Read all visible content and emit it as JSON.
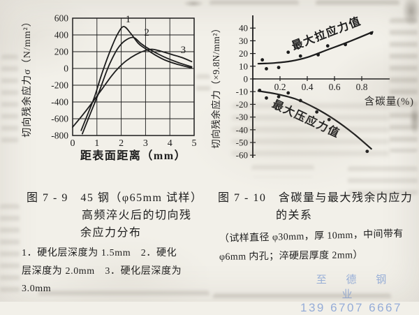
{
  "page": {
    "background": "#f2f0e9",
    "ink": "#1c1c1c"
  },
  "fig_left": {
    "caption_line1": "图 7 - 9　45 钢（φ65mm 试样）",
    "caption_line2": "高频淬火后的切向残",
    "caption_line3": "余应力分布",
    "note_line1": "1．硬化层深度为 1.5mm　2．硬化",
    "note_line2": "层深度为 2.0mm　3．硬化层深度为",
    "note_line3": "3.0mm"
  },
  "fig_right": {
    "caption_line1": "图 7 - 10　含碳量与最大残余内应力",
    "caption_line2": "的关系",
    "spec_line1": "（试样直径 φ30mm，厚 10mm，中间带有",
    "spec_line2": "φ6mm 内孔；淬硬层厚度 2mm）"
  },
  "watermark": {
    "company": "至 德 钢 业",
    "phone": "139 6707 6667",
    "color": "#7d9cd4"
  },
  "chart_data": [
    {
      "type": "line",
      "title": "45钢(φ65mm试样)高频淬火后的切向残余应力分布",
      "xlabel": "距表面距离（mm）",
      "ylabel": "切向残余应力σ（N/mm²）",
      "xlim": [
        0,
        5
      ],
      "ylim": [
        -800,
        600
      ],
      "xticks": [
        0,
        1,
        2,
        3,
        4,
        5
      ],
      "yticks": [
        600,
        400,
        200,
        0,
        -200,
        -400,
        -600,
        -800
      ],
      "grid": true,
      "series": [
        {
          "name": "1",
          "hardened_depth_mm": 1.5,
          "label_pos": [
            2.28,
            552
          ],
          "points": [
            [
              0.35,
              -740
            ],
            [
              0.6,
              -560
            ],
            [
              0.9,
              -340
            ],
            [
              1.15,
              -110
            ],
            [
              1.35,
              60
            ],
            [
              1.6,
              250
            ],
            [
              1.85,
              410
            ],
            [
              2.1,
              500
            ],
            [
              2.4,
              415
            ],
            [
              2.7,
              300
            ],
            [
              3.0,
              235
            ],
            [
              3.4,
              160
            ],
            [
              3.8,
              100
            ],
            [
              4.3,
              50
            ],
            [
              4.9,
              5
            ]
          ]
        },
        {
          "name": "2",
          "hardened_depth_mm": 2.0,
          "label_pos": [
            3.05,
            390
          ],
          "points": [
            [
              0.4,
              -780
            ],
            [
              0.7,
              -560
            ],
            [
              1.05,
              -310
            ],
            [
              1.35,
              -70
            ],
            [
              1.55,
              70
            ],
            [
              1.85,
              235
            ],
            [
              2.15,
              330
            ],
            [
              2.5,
              370
            ],
            [
              2.8,
              300
            ],
            [
              3.1,
              240
            ],
            [
              3.5,
              175
            ],
            [
              3.9,
              120
            ],
            [
              4.4,
              65
            ],
            [
              4.9,
              20
            ]
          ]
        },
        {
          "name": "3",
          "hardened_depth_mm": 3.0,
          "label_pos": [
            4.55,
            185
          ],
          "points": [
            [
              0,
              -700
            ],
            [
              0.4,
              -560
            ],
            [
              0.8,
              -410
            ],
            [
              1.2,
              -250
            ],
            [
              1.6,
              -90
            ],
            [
              1.9,
              10
            ],
            [
              2.2,
              90
            ],
            [
              2.6,
              165
            ],
            [
              3.0,
              215
            ],
            [
              3.3,
              228
            ],
            [
              3.7,
              200
            ],
            [
              4.1,
              165
            ],
            [
              4.5,
              130
            ],
            [
              4.9,
              82
            ]
          ]
        }
      ]
    },
    {
      "type": "scatter",
      "title": "含碳量与最大残余内应力的关系",
      "xlabel": "含碳量(%)",
      "ylabel": "切向残余应力（×9.8N/mm²）",
      "xlim": [
        0,
        0.95
      ],
      "ylim": [
        -60,
        40
      ],
      "xticks": [
        0.2,
        0.4,
        0.6,
        0.8
      ],
      "yticks": [
        40,
        30,
        20,
        10,
        0,
        -10,
        -20,
        -30,
        -40,
        -50,
        -60
      ],
      "grid": false,
      "series": [
        {
          "name": "最大拉应力值",
          "label_pos": [
            0.55,
            33
          ],
          "label_angle": -21,
          "points": [
            [
              0.07,
              15
            ],
            [
              0.1,
              8
            ],
            [
              0.19,
              9
            ],
            [
              0.26,
              21
            ],
            [
              0.35,
              18
            ],
            [
              0.48,
              19
            ],
            [
              0.55,
              26
            ],
            [
              0.68,
              27
            ],
            [
              0.87,
              36
            ]
          ],
          "trend": [
            [
              0.04,
              12
            ],
            [
              0.15,
              12.5
            ],
            [
              0.28,
              14
            ],
            [
              0.4,
              17
            ],
            [
              0.55,
              23
            ],
            [
              0.7,
              29
            ],
            [
              0.88,
              37
            ]
          ]
        },
        {
          "name": "最大压应力值",
          "label_pos": [
            0.38,
            -34
          ],
          "label_angle": 25,
          "points": [
            [
              0.05,
              -9
            ],
            [
              0.1,
              -15
            ],
            [
              0.19,
              -14
            ],
            [
              0.26,
              -11
            ],
            [
              0.35,
              -17
            ],
            [
              0.47,
              -26
            ],
            [
              0.56,
              -32
            ],
            [
              0.84,
              -57
            ]
          ],
          "trend": [
            [
              0.04,
              -9.5
            ],
            [
              0.18,
              -12
            ],
            [
              0.32,
              -16
            ],
            [
              0.46,
              -23
            ],
            [
              0.6,
              -32
            ],
            [
              0.74,
              -43
            ],
            [
              0.87,
              -55
            ]
          ]
        }
      ]
    }
  ]
}
